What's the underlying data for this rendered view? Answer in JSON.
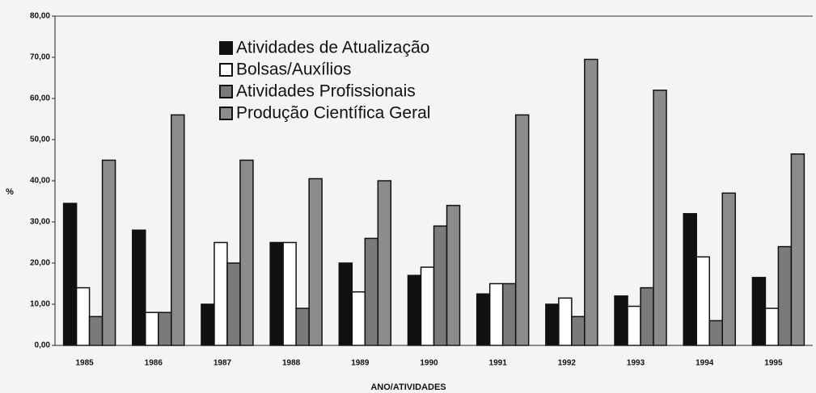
{
  "chart_data": {
    "type": "bar",
    "categories": [
      "1985",
      "1986",
      "1987",
      "1988",
      "1989",
      "1990",
      "1991",
      "1992",
      "1993",
      "1994",
      "1995"
    ],
    "series": [
      {
        "name": "Atividades de Atualização",
        "color": "#111111",
        "values": [
          34.5,
          28,
          10,
          25,
          20,
          17,
          12.5,
          10,
          12,
          32,
          16.5
        ]
      },
      {
        "name": "Bolsas/Auxílios",
        "color": "#ffffff",
        "values": [
          14,
          8,
          25,
          25,
          13,
          19,
          15,
          11.5,
          9.5,
          21.5,
          9
        ]
      },
      {
        "name": "Atividades Profissionais",
        "color": "#7a7a7a",
        "values": [
          7,
          8,
          20,
          9,
          26,
          29,
          15,
          7,
          14,
          6,
          24
        ]
      },
      {
        "name": "Produção Científica Geral",
        "color": "#8c8c8c",
        "values": [
          45,
          56,
          45,
          40.5,
          40,
          34,
          56,
          69.5,
          62,
          37,
          46.5
        ]
      }
    ],
    "ylabel": "%",
    "xlabel": "ANO/ATIVIDADES",
    "ylim": [
      0,
      80
    ],
    "yticks": [
      {
        "value": 0,
        "label": "0,00"
      },
      {
        "value": 10,
        "label": "10,00"
      },
      {
        "value": 20,
        "label": "20,00"
      },
      {
        "value": 30,
        "label": "30,00"
      },
      {
        "value": 40,
        "label": "40,00"
      },
      {
        "value": 50,
        "label": "50,00"
      },
      {
        "value": 60,
        "label": "60,00"
      },
      {
        "value": 70,
        "label": "70,00"
      },
      {
        "value": 80,
        "label": "80,00"
      }
    ],
    "legend": "top-left"
  }
}
